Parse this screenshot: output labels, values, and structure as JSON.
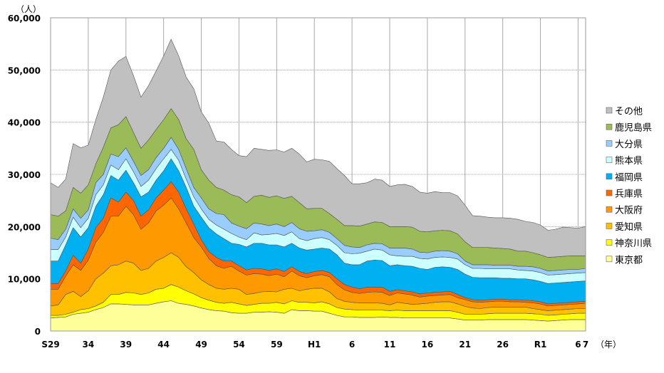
{
  "chart_data": {
    "type": "area",
    "stacked": true,
    "y_unit_label": "（人）",
    "x_unit_label": "（年）",
    "ylim": [
      0,
      60000
    ],
    "y_ticks": [
      0,
      10000,
      20000,
      30000,
      40000,
      50000,
      60000
    ],
    "y_tick_labels": [
      "0",
      "10,000",
      "20,000",
      "30,000",
      "40,000",
      "50,000",
      "60,000"
    ],
    "x_ticks": [
      {
        "year": 1954,
        "label": "S29"
      },
      {
        "year": 1959,
        "label": "34"
      },
      {
        "year": 1964,
        "label": "39"
      },
      {
        "year": 1969,
        "label": "44"
      },
      {
        "year": 1974,
        "label": "49"
      },
      {
        "year": 1979,
        "label": "54"
      },
      {
        "year": 1984,
        "label": "59"
      },
      {
        "year": 1989,
        "label": "H1"
      },
      {
        "year": 1994,
        "label": "6"
      },
      {
        "year": 1999,
        "label": "11"
      },
      {
        "year": 2004,
        "label": "16"
      },
      {
        "year": 2009,
        "label": "21"
      },
      {
        "year": 2014,
        "label": "26"
      },
      {
        "year": 2019,
        "label": "R1"
      },
      {
        "year": 2024,
        "label": "6"
      },
      {
        "year": 2025,
        "label": "7"
      }
    ],
    "grid": true,
    "legend_position": "right",
    "years": [
      1954,
      1955,
      1956,
      1957,
      1958,
      1959,
      1960,
      1961,
      1962,
      1963,
      1964,
      1965,
      1966,
      1967,
      1968,
      1969,
      1970,
      1971,
      1972,
      1973,
      1974,
      1975,
      1976,
      1977,
      1978,
      1979,
      1980,
      1981,
      1982,
      1983,
      1984,
      1985,
      1986,
      1987,
      1988,
      1989,
      1990,
      1991,
      1992,
      1993,
      1994,
      1995,
      1996,
      1997,
      1998,
      1999,
      2000,
      2001,
      2002,
      2003,
      2004,
      2005,
      2006,
      2007,
      2008,
      2009,
      2010,
      2011,
      2012,
      2013,
      2014,
      2015,
      2016,
      2017,
      2018,
      2019,
      2020,
      2021,
      2022,
      2023,
      2024,
      2025
    ],
    "series": [
      {
        "name": "東京都",
        "color": "#FFFF99",
        "values": [
          2500,
          2600,
          2700,
          3200,
          3400,
          3600,
          4100,
          4500,
          5200,
          5200,
          5100,
          5000,
          5000,
          5000,
          5300,
          5600,
          5800,
          5300,
          5100,
          4800,
          4400,
          4100,
          3900,
          3800,
          3500,
          3400,
          3400,
          3600,
          3600,
          3700,
          3600,
          3400,
          4100,
          3900,
          3900,
          3800,
          3800,
          3400,
          3000,
          2700,
          2700,
          2600,
          2600,
          2600,
          2700,
          2600,
          2600,
          2500,
          2500,
          2500,
          2500,
          2500,
          2500,
          2500,
          2300,
          2100,
          2100,
          2100,
          2200,
          2200,
          2200,
          2200,
          2200,
          2200,
          2100,
          2000,
          1900,
          2000,
          2100,
          2200,
          2200,
          2200
        ]
      },
      {
        "name": "神奈川県",
        "color": "#FFFF00",
        "values": [
          500,
          400,
          500,
          400,
          700,
          700,
          700,
          1000,
          1800,
          1800,
          2300,
          2300,
          2000,
          2300,
          2700,
          2600,
          3100,
          3100,
          2600,
          2300,
          2000,
          1800,
          1600,
          1500,
          2000,
          1800,
          1500,
          1500,
          1700,
          1600,
          1900,
          1800,
          1700,
          1600,
          1600,
          1600,
          1800,
          1800,
          1500,
          1500,
          1400,
          1400,
          1400,
          1400,
          1300,
          1300,
          1400,
          1400,
          1400,
          1400,
          1400,
          1400,
          1400,
          1400,
          1300,
          1100,
          1100,
          1100,
          1100,
          1200,
          1200,
          1200,
          1200,
          1200,
          1200,
          1200,
          1100,
          1100,
          1100,
          1100,
          1200,
          1200
        ]
      },
      {
        "name": "愛知県",
        "color": "#FFC000",
        "values": [
          1800,
          2000,
          3800,
          4000,
          2500,
          3400,
          5200,
          5600,
          5500,
          5700,
          6000,
          5700,
          4600,
          4700,
          5400,
          5900,
          6100,
          5700,
          4600,
          4100,
          3400,
          3000,
          2700,
          2700,
          2700,
          2800,
          2100,
          2100,
          2200,
          2300,
          2000,
          2800,
          2400,
          2200,
          2500,
          2800,
          2600,
          2300,
          1700,
          1500,
          1400,
          1400,
          1400,
          1400,
          1300,
          1100,
          1500,
          1400,
          1200,
          1300,
          1400,
          1600,
          1700,
          1700,
          1600,
          1500,
          1200,
          1100,
          1200,
          1200,
          1200,
          1200,
          1200,
          1200,
          1000,
          900,
          900,
          900,
          900,
          900,
          900,
          900
        ]
      },
      {
        "name": "大阪府",
        "color": "#FF9900",
        "values": [
          3200,
          3000,
          3500,
          5100,
          5000,
          5900,
          7000,
          7800,
          9500,
          9300,
          10500,
          9300,
          7900,
          8700,
          9600,
          10000,
          10500,
          9300,
          8400,
          6700,
          6300,
          5000,
          4300,
          4000,
          4200,
          3500,
          3700,
          3800,
          3400,
          3000,
          3400,
          2400,
          3300,
          2900,
          2200,
          2400,
          2600,
          2900,
          2700,
          2200,
          1900,
          1800,
          2000,
          2100,
          2100,
          1800,
          1800,
          1800,
          1800,
          1300,
          1400,
          1300,
          1300,
          1400,
          1200,
          1300,
          1200,
          1200,
          1100,
          1100,
          1100,
          1000,
          1000,
          900,
          1100,
          1100,
          900,
          900,
          900,
          900,
          900,
          1000
        ]
      },
      {
        "name": "兵庫県",
        "color": "#FF6600",
        "values": [
          1100,
          1100,
          1000,
          1800,
          1400,
          2100,
          2800,
          2700,
          3500,
          2700,
          2700,
          2700,
          2500,
          2500,
          2500,
          2900,
          3100,
          3200,
          2700,
          2600,
          1400,
          1300,
          1600,
          1400,
          1000,
          1000,
          1000,
          1000,
          1000,
          1000,
          1000,
          1000,
          800,
          800,
          800,
          800,
          800,
          800,
          1100,
          1000,
          1000,
          900,
          1000,
          900,
          1000,
          800,
          600,
          600,
          600,
          600,
          600,
          600,
          600,
          600,
          600,
          400,
          400,
          400,
          400,
          400,
          400,
          400,
          400,
          400,
          400,
          400,
          400,
          400,
          400,
          400,
          400,
          400
        ]
      },
      {
        "name": "福岡県",
        "color": "#00B0F0",
        "values": [
          4300,
          4300,
          5000,
          5300,
          5000,
          4100,
          4100,
          4500,
          4300,
          4200,
          4200,
          3400,
          3700,
          3400,
          3400,
          3700,
          4400,
          4100,
          4100,
          3400,
          4300,
          4600,
          4500,
          4300,
          3400,
          4100,
          4400,
          4800,
          4900,
          4900,
          4600,
          4700,
          4500,
          4500,
          4500,
          4300,
          4300,
          4500,
          4600,
          4100,
          4300,
          4600,
          5000,
          5200,
          5100,
          4900,
          4800,
          4800,
          4900,
          4900,
          4500,
          4800,
          4800,
          4600,
          4800,
          4500,
          4300,
          4300,
          4200,
          4100,
          4000,
          4100,
          4000,
          4100,
          4000,
          3900,
          3900,
          3900,
          3900,
          3900,
          3900,
          3900
        ]
      },
      {
        "name": "熊本県",
        "color": "#CCFFFF",
        "values": [
          2200,
          2200,
          1500,
          2000,
          1800,
          1800,
          2200,
          1900,
          2000,
          2000,
          2200,
          2100,
          2000,
          2300,
          2200,
          2300,
          1800,
          2000,
          1600,
          1800,
          1600,
          1600,
          1700,
          1800,
          1900,
          1400,
          1400,
          2000,
          1600,
          2000,
          2200,
          2200,
          2200,
          1800,
          1800,
          2000,
          2000,
          1800,
          1800,
          2000,
          2100,
          2200,
          1900,
          2100,
          2000,
          2100,
          1700,
          1800,
          1900,
          1900,
          2000,
          1900,
          1900,
          1900,
          2000,
          1800,
          1700,
          1800,
          1700,
          1700,
          1800,
          1800,
          1700,
          1600,
          1700,
          1700,
          1600,
          1600,
          1600,
          1600,
          1600,
          1600
        ]
      },
      {
        "name": "大分県",
        "color": "#99CCFF",
        "values": [
          2200,
          1900,
          1500,
          1600,
          1800,
          1600,
          2300,
          2000,
          2100,
          2500,
          2100,
          2000,
          2100,
          2000,
          2100,
          2000,
          2300,
          2100,
          2000,
          1800,
          2100,
          2000,
          2200,
          2800,
          2000,
          2100,
          2100,
          1900,
          2100,
          1700,
          1800,
          1700,
          1800,
          1900,
          1800,
          1500,
          1500,
          1400,
          1300,
          1400,
          1300,
          1100,
          1200,
          1100,
          1200,
          1300,
          1500,
          1600,
          1400,
          1200,
          1200,
          1200,
          1200,
          1200,
          1000,
          700,
          700,
          700,
          800,
          700,
          700,
          700,
          700,
          800,
          800,
          800,
          800,
          800,
          800,
          800,
          700,
          800
        ]
      },
      {
        "name": "鹿児島県",
        "color": "#9BBB59",
        "values": [
          4500,
          4500,
          3500,
          4100,
          4800,
          4800,
          3600,
          5200,
          5000,
          6100,
          6000,
          5500,
          5200,
          5700,
          5400,
          5500,
          5500,
          5700,
          5700,
          7300,
          5400,
          5500,
          5000,
          4700,
          5400,
          5600,
          5000,
          5100,
          5500,
          5400,
          5400,
          5400,
          5000,
          5000,
          4300,
          4300,
          4100,
          3600,
          3700,
          3800,
          4100,
          4100,
          4000,
          4100,
          4100,
          4100,
          4100,
          4100,
          4200,
          4000,
          4000,
          3900,
          3900,
          3900,
          3800,
          3700,
          3300,
          3300,
          3300,
          3300,
          3200,
          3100,
          2900,
          2900,
          2700,
          2600,
          2600,
          2600,
          2600,
          2600,
          2600,
          2400
        ]
      },
      {
        "name": "その他",
        "color": "#C0C0C0",
        "values": [
          6100,
          5500,
          6100,
          8400,
          8700,
          7600,
          8500,
          9600,
          11100,
          12200,
          11500,
          10900,
          9800,
          10400,
          11200,
          12200,
          13300,
          12200,
          11800,
          11600,
          11100,
          10900,
          8900,
          9200,
          8700,
          7900,
          8800,
          9200,
          8800,
          9000,
          8800,
          8900,
          9200,
          9300,
          9000,
          9400,
          9300,
          10000,
          9700,
          9600,
          8000,
          8100,
          7900,
          8200,
          8100,
          7700,
          8000,
          8100,
          7800,
          7500,
          7400,
          7500,
          7200,
          7300,
          7300,
          7000,
          6100,
          6000,
          5800,
          5800,
          5900,
          5900,
          6100,
          5700,
          5800,
          5700,
          5200,
          5300,
          5600,
          5400,
          5300,
          5600
        ]
      }
    ]
  }
}
